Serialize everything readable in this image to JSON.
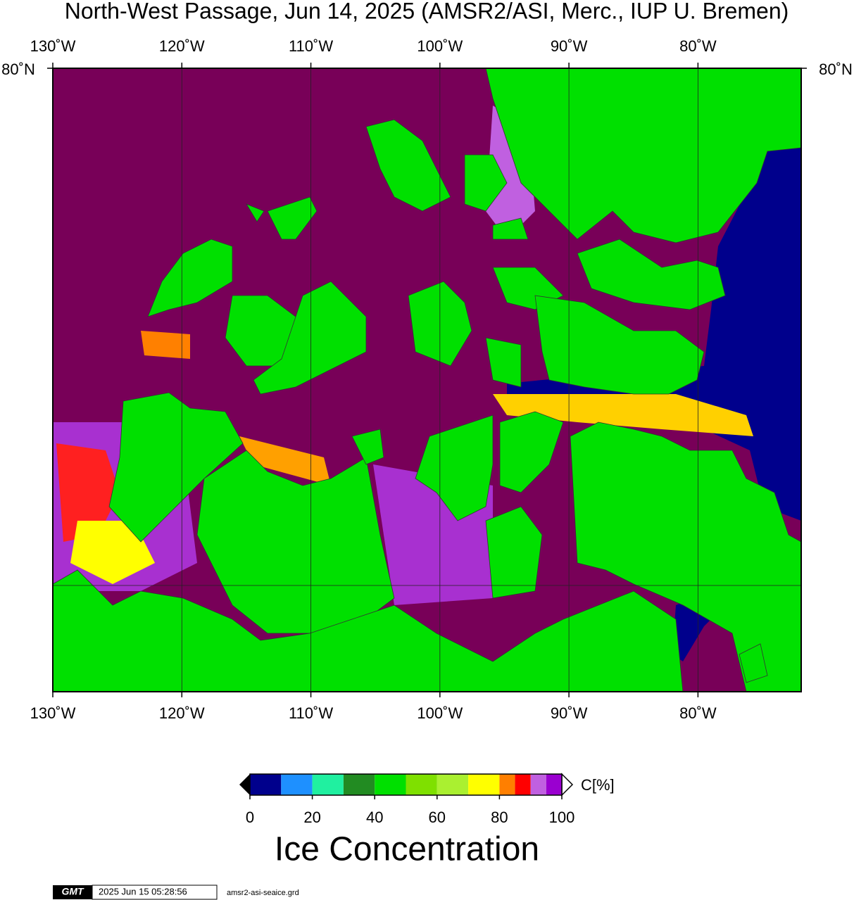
{
  "title": "North-West Passage, Jun 14, 2025 (AMSR2/ASI, Merc., IUP U. Bremen)",
  "map": {
    "xlim": [
      -130,
      -72
    ],
    "lon_ticks": [
      {
        "value": -130,
        "label": "130˚W"
      },
      {
        "value": -120,
        "label": "120˚W"
      },
      {
        "value": -110,
        "label": "110˚W"
      },
      {
        "value": -100,
        "label": "100˚W"
      },
      {
        "value": -90,
        "label": "90˚W"
      },
      {
        "value": -80,
        "label": "80˚W"
      }
    ],
    "lat_label": {
      "value": 80,
      "label": "80˚N"
    }
  },
  "colorbar": {
    "bins": [
      0,
      10,
      20,
      30,
      40,
      50,
      60,
      70,
      80,
      85,
      90,
      95,
      100
    ],
    "colors": [
      "#00008c",
      "#1e90ff",
      "#20f0a0",
      "#228b22",
      "#00e000",
      "#7fe000",
      "#aaf030",
      "#ffff00",
      "#ff7f00",
      "#ff0000",
      "#c060e0",
      "#9a00d0"
    ],
    "ticks": [
      0,
      20,
      40,
      60,
      80,
      100
    ],
    "unit": "C[%]",
    "label": "Ice Concentration"
  },
  "footer": {
    "logo": "GMT",
    "timestamp": "2025 Jun 15 05:28:56",
    "file": "amsr2-asi-seaice.grd"
  }
}
